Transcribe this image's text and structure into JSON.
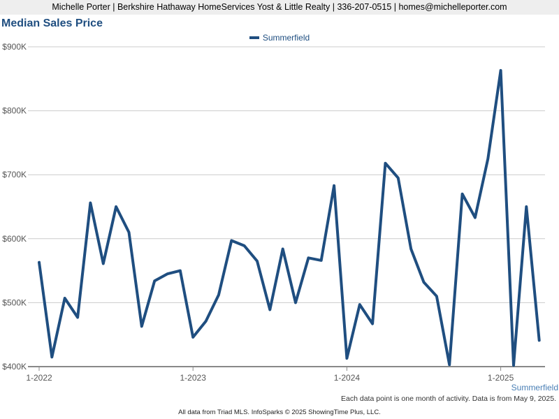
{
  "header": {
    "contact_line": "Michelle Porter | Berkshire Hathaway HomeServices Yost & Little Realty | 336-207-0515 | homes@michelleporter.com"
  },
  "chart_data": {
    "type": "line",
    "title": "Median Sales Price",
    "legend_position": "top-center",
    "grid": true,
    "ylim": [
      400000,
      900000
    ],
    "y_ticks": [
      {
        "value": 400000,
        "label": "$400K"
      },
      {
        "value": 500000,
        "label": "$500K"
      },
      {
        "value": 600000,
        "label": "$600K"
      },
      {
        "value": 700000,
        "label": "$700K"
      },
      {
        "value": 800000,
        "label": "$800K"
      },
      {
        "value": 900000,
        "label": "$900K"
      }
    ],
    "x_tick_labels": [
      "1-2022",
      "1-2023",
      "1-2024",
      "1-2025"
    ],
    "x_start": "1-2022",
    "x_end": "4-2025",
    "series_label_under_axis": "Summerfield",
    "colors": {
      "series": "#1f4e80",
      "grid": "#cccccc",
      "axis": "#888888"
    },
    "series": [
      {
        "name": "Summerfield",
        "x": [
          "1-2022",
          "2-2022",
          "3-2022",
          "4-2022",
          "5-2022",
          "6-2022",
          "7-2022",
          "8-2022",
          "9-2022",
          "10-2022",
          "11-2022",
          "12-2022",
          "1-2023",
          "2-2023",
          "3-2023",
          "4-2023",
          "5-2023",
          "6-2023",
          "7-2023",
          "8-2023",
          "9-2023",
          "10-2023",
          "11-2023",
          "12-2023",
          "1-2024",
          "2-2024",
          "3-2024",
          "4-2024",
          "5-2024",
          "6-2024",
          "7-2024",
          "8-2024",
          "9-2024",
          "10-2024",
          "11-2024",
          "12-2024",
          "1-2025",
          "2-2025",
          "3-2025",
          "4-2025"
        ],
        "values": [
          563000,
          415000,
          507000,
          477000,
          656000,
          561000,
          650000,
          610000,
          463000,
          534000,
          545000,
          550000,
          446000,
          471000,
          512000,
          597000,
          589000,
          565000,
          489000,
          584000,
          500000,
          570000,
          566000,
          683000,
          413000,
          497000,
          467000,
          718000,
          695000,
          584000,
          532000,
          510000,
          403000,
          670000,
          633000,
          725000,
          863000,
          402000,
          650000,
          441000
        ]
      }
    ]
  },
  "notes": {
    "activity_note": "Each data point is one month of activity. Data is from May 9, 2025.",
    "footer": "All data from Triad MLS. InfoSparks © 2025 ShowingTime Plus, LLC."
  }
}
